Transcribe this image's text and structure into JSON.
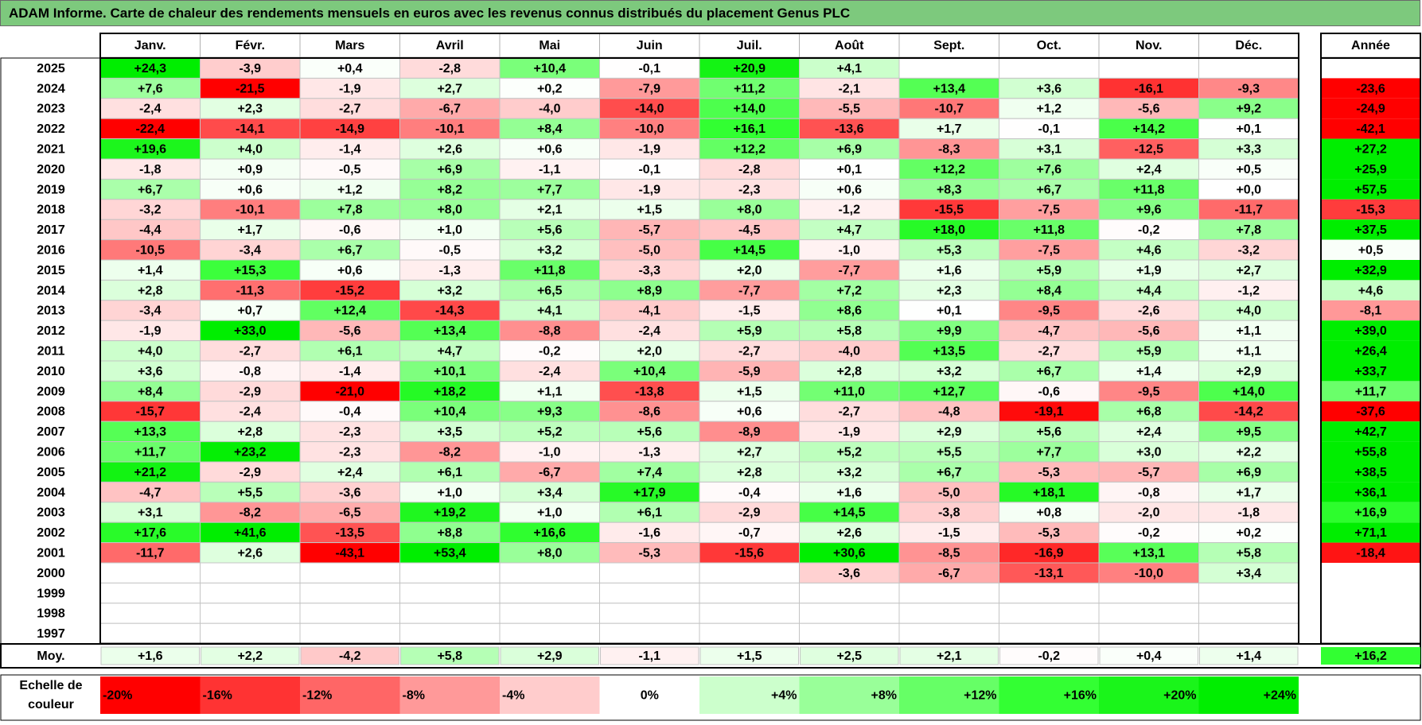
{
  "title": "ADAM Informe. Carte de chaleur des rendements mensuels en euros avec les revenus connus distribués du placement Genus PLC",
  "chart_data": {
    "type": "heatmap",
    "title": "ADAM Informe. Carte de chaleur des rendements mensuels en euros avec les revenus connus distribués du placement Genus PLC",
    "columns": [
      "Janv.",
      "Févr.",
      "Mars",
      "Avril",
      "Mai",
      "Juin",
      "Juil.",
      "Août",
      "Sept.",
      "Oct.",
      "Nov.",
      "Déc."
    ],
    "year_header": "Année",
    "rows": [
      {
        "year": "2025",
        "months": [
          "+24,3",
          "-3,9",
          "+0,4",
          "-2,8",
          "+10,4",
          "-0,1",
          "+20,9",
          "+4,1",
          "",
          "",
          "",
          ""
        ],
        "annual": ""
      },
      {
        "year": "2024",
        "months": [
          "+7,6",
          "-21,5",
          "-1,9",
          "+2,7",
          "+0,2",
          "-7,9",
          "+11,2",
          "-2,1",
          "+13,4",
          "+3,6",
          "-16,1",
          "-9,3"
        ],
        "annual": "-23,6"
      },
      {
        "year": "2023",
        "months": [
          "-2,4",
          "+2,3",
          "-2,7",
          "-6,7",
          "-4,0",
          "-14,0",
          "+14,0",
          "-5,5",
          "-10,7",
          "+1,2",
          "-5,6",
          "+9,2"
        ],
        "annual": "-24,9"
      },
      {
        "year": "2022",
        "months": [
          "-22,4",
          "-14,1",
          "-14,9",
          "-10,1",
          "+8,4",
          "-10,0",
          "+16,1",
          "-13,6",
          "+1,7",
          "-0,1",
          "+14,2",
          "+0,1"
        ],
        "annual": "-42,1"
      },
      {
        "year": "2021",
        "months": [
          "+19,6",
          "+4,0",
          "-1,4",
          "+2,6",
          "+0,6",
          "-1,9",
          "+12,2",
          "+6,9",
          "-8,3",
          "+3,1",
          "-12,5",
          "+3,3"
        ],
        "annual": "+27,2"
      },
      {
        "year": "2020",
        "months": [
          "-1,8",
          "+0,9",
          "-0,5",
          "+6,9",
          "-1,1",
          "-0,1",
          "-2,8",
          "+0,1",
          "+12,2",
          "+7,6",
          "+2,4",
          "+0,5"
        ],
        "annual": "+25,9"
      },
      {
        "year": "2019",
        "months": [
          "+6,7",
          "+0,6",
          "+1,2",
          "+8,2",
          "+7,7",
          "-1,9",
          "-2,3",
          "+0,6",
          "+8,3",
          "+6,7",
          "+11,8",
          "+0,0"
        ],
        "annual": "+57,5"
      },
      {
        "year": "2018",
        "months": [
          "-3,2",
          "-10,1",
          "+7,8",
          "+8,0",
          "+2,1",
          "+1,5",
          "+8,0",
          "-1,2",
          "-15,5",
          "-7,5",
          "+9,6",
          "-11,7"
        ],
        "annual": "-15,3"
      },
      {
        "year": "2017",
        "months": [
          "-4,4",
          "+1,7",
          "-0,6",
          "+1,0",
          "+5,6",
          "-5,7",
          "-4,5",
          "+4,7",
          "+18,0",
          "+11,8",
          "-0,2",
          "+7,8"
        ],
        "annual": "+37,5"
      },
      {
        "year": "2016",
        "months": [
          "-10,5",
          "-3,4",
          "+6,7",
          "-0,5",
          "+3,2",
          "-5,0",
          "+14,5",
          "-1,0",
          "+5,3",
          "-7,5",
          "+4,6",
          "-3,2"
        ],
        "annual": "+0,5"
      },
      {
        "year": "2015",
        "months": [
          "+1,4",
          "+15,3",
          "+0,6",
          "-1,3",
          "+11,8",
          "-3,3",
          "+2,0",
          "-7,7",
          "+1,6",
          "+5,9",
          "+1,9",
          "+2,7"
        ],
        "annual": "+32,9"
      },
      {
        "year": "2014",
        "months": [
          "+2,8",
          "-11,3",
          "-15,2",
          "+3,2",
          "+6,5",
          "+8,9",
          "-7,7",
          "+7,2",
          "+2,3",
          "+8,4",
          "+4,4",
          "-1,2"
        ],
        "annual": "+4,6"
      },
      {
        "year": "2013",
        "months": [
          "-3,4",
          "+0,7",
          "+12,4",
          "-14,3",
          "+4,1",
          "-4,1",
          "-1,5",
          "+8,6",
          "+0,1",
          "-9,5",
          "-2,6",
          "+4,0"
        ],
        "annual": "-8,1"
      },
      {
        "year": "2012",
        "months": [
          "-1,9",
          "+33,0",
          "-5,6",
          "+13,4",
          "-8,8",
          "-2,4",
          "+5,9",
          "+5,8",
          "+9,9",
          "-4,7",
          "-5,6",
          "+1,1"
        ],
        "annual": "+39,0"
      },
      {
        "year": "2011",
        "months": [
          "+4,0",
          "-2,7",
          "+6,1",
          "+4,7",
          "-0,2",
          "+2,0",
          "-2,7",
          "-4,0",
          "+13,5",
          "-2,7",
          "+5,9",
          "+1,1"
        ],
        "annual": "+26,4"
      },
      {
        "year": "2010",
        "months": [
          "+3,6",
          "-0,8",
          "-1,4",
          "+10,1",
          "-2,4",
          "+10,4",
          "-5,9",
          "+2,8",
          "+3,2",
          "+6,7",
          "+1,4",
          "+2,9"
        ],
        "annual": "+33,7"
      },
      {
        "year": "2009",
        "months": [
          "+8,4",
          "-2,9",
          "-21,0",
          "+18,2",
          "+1,1",
          "-13,8",
          "+1,5",
          "+11,0",
          "+12,7",
          "-0,6",
          "-9,5",
          "+14,0"
        ],
        "annual": "+11,7"
      },
      {
        "year": "2008",
        "months": [
          "-15,7",
          "-2,4",
          "-0,4",
          "+10,4",
          "+9,3",
          "-8,6",
          "+0,6",
          "-2,7",
          "-4,8",
          "-19,1",
          "+6,8",
          "-14,2"
        ],
        "annual": "-37,6"
      },
      {
        "year": "2007",
        "months": [
          "+13,3",
          "+2,8",
          "-2,3",
          "+3,5",
          "+5,2",
          "+5,6",
          "-8,9",
          "-1,9",
          "+2,9",
          "+5,6",
          "+2,4",
          "+9,5"
        ],
        "annual": "+42,7"
      },
      {
        "year": "2006",
        "months": [
          "+11,7",
          "+23,2",
          "-2,3",
          "-8,2",
          "-1,0",
          "-1,3",
          "+2,7",
          "+5,2",
          "+5,5",
          "+7,7",
          "+3,0",
          "+2,2"
        ],
        "annual": "+55,8"
      },
      {
        "year": "2005",
        "months": [
          "+21,2",
          "-2,9",
          "+2,4",
          "+6,1",
          "-6,7",
          "+7,4",
          "+2,8",
          "+3,2",
          "+6,7",
          "-5,3",
          "-5,7",
          "+6,9"
        ],
        "annual": "+38,5"
      },
      {
        "year": "2004",
        "months": [
          "-4,7",
          "+5,5",
          "-3,6",
          "+1,0",
          "+3,4",
          "+17,9",
          "-0,4",
          "+1,6",
          "-5,0",
          "+18,1",
          "-0,8",
          "+1,7"
        ],
        "annual": "+36,1"
      },
      {
        "year": "2003",
        "months": [
          "+3,1",
          "-8,2",
          "-6,5",
          "+19,2",
          "+1,0",
          "+6,1",
          "-2,9",
          "+14,5",
          "-3,8",
          "+0,8",
          "-2,0",
          "-1,8"
        ],
        "annual": "+16,9"
      },
      {
        "year": "2002",
        "months": [
          "+17,6",
          "+41,6",
          "-13,5",
          "+8,8",
          "+16,6",
          "-1,6",
          "-0,7",
          "+2,6",
          "-1,5",
          "-5,3",
          "-0,2",
          "+0,2"
        ],
        "annual": "+71,1"
      },
      {
        "year": "2001",
        "months": [
          "-11,7",
          "+2,6",
          "-43,1",
          "+53,4",
          "+8,0",
          "-5,3",
          "-15,6",
          "+30,6",
          "-8,5",
          "-16,9",
          "+13,1",
          "+5,8"
        ],
        "annual": "-18,4"
      },
      {
        "year": "2000",
        "months": [
          "",
          "",
          "",
          "",
          "",
          "",
          "",
          "-3,6",
          "-6,7",
          "-13,1",
          "-10,0",
          "+3,4"
        ],
        "annual": ""
      },
      {
        "year": "1999",
        "months": [
          "",
          "",
          "",
          "",
          "",
          "",
          "",
          "",
          "",
          "",
          "",
          ""
        ],
        "annual": ""
      },
      {
        "year": "1998",
        "months": [
          "",
          "",
          "",
          "",
          "",
          "",
          "",
          "",
          "",
          "",
          "",
          ""
        ],
        "annual": ""
      },
      {
        "year": "1997",
        "months": [
          "",
          "",
          "",
          "",
          "",
          "",
          "",
          "",
          "",
          "",
          "",
          ""
        ],
        "annual": ""
      }
    ],
    "average": {
      "label": "Moy.",
      "months": [
        "+1,6",
        "+2,2",
        "-4,2",
        "+5,8",
        "+2,9",
        "-1,1",
        "+1,5",
        "+2,5",
        "+2,1",
        "-0,2",
        "+0,4",
        "+1,4"
      ],
      "annual": "+16,2"
    },
    "color_scale": {
      "label_line1": "Echelle de",
      "label_line2": "couleur",
      "stops": [
        {
          "label": "-20%",
          "value": -20,
          "color": "#FF0000"
        },
        {
          "label": "-16%",
          "value": -16,
          "color": "#FF3333"
        },
        {
          "label": "-12%",
          "value": -12,
          "color": "#FF6666"
        },
        {
          "label": "-8%",
          "value": -8,
          "color": "#FF9999"
        },
        {
          "label": "-4%",
          "value": -4,
          "color": "#FFCCCC"
        },
        {
          "label": "0%",
          "value": 0,
          "color": "#FFFFFF"
        },
        {
          "label": "+4%",
          "value": 4,
          "color": "#CCFFCC"
        },
        {
          "label": "+8%",
          "value": 8,
          "color": "#99FF99"
        },
        {
          "label": "+12%",
          "value": 12,
          "color": "#66FF66"
        },
        {
          "label": "+16%",
          "value": 16,
          "color": "#33FF33"
        },
        {
          "label": "+20%",
          "value": 20,
          "color": "#1AF51A"
        },
        {
          "label": "+24%",
          "value": 24,
          "color": "#00EE00"
        }
      ]
    }
  }
}
